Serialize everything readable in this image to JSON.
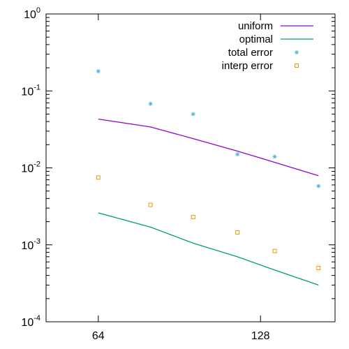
{
  "chart_data": {
    "type": "line",
    "xscale": "log2",
    "yscale": "log10",
    "xlim": [
      51.2,
      176
    ],
    "ylim": [
      0.0001,
      1
    ],
    "x_ticks": [
      {
        "value": 64,
        "label": "64"
      },
      {
        "value": 128,
        "label": "128"
      }
    ],
    "y_ticks": [
      {
        "value": 1,
        "base": "10",
        "exp": "0"
      },
      {
        "value": 0.1,
        "base": "10",
        "exp": "-1"
      },
      {
        "value": 0.01,
        "base": "10",
        "exp": "-2"
      },
      {
        "value": 0.001,
        "base": "10",
        "exp": "-3"
      },
      {
        "value": 0.0001,
        "base": "10",
        "exp": "-4"
      }
    ],
    "grid": false,
    "legend_position": "top-right",
    "x": [
      64,
      80,
      96,
      116,
      136,
      164
    ],
    "series": [
      {
        "name": "uniform",
        "style": "line",
        "color": "#9400d3",
        "values": [
          0.043,
          0.034,
          0.024,
          0.0165,
          0.0118,
          0.0079
        ]
      },
      {
        "name": "optimal",
        "style": "line",
        "color": "#009e73",
        "values": [
          0.0026,
          0.0017,
          0.00105,
          0.0007,
          0.00047,
          0.0003
        ]
      },
      {
        "name": "total error",
        "style": "points",
        "marker": "star",
        "color": "#56b4e9",
        "values": [
          0.18,
          0.068,
          0.05,
          0.015,
          0.014,
          0.0058
        ]
      },
      {
        "name": "interp error",
        "style": "points",
        "marker": "square",
        "color": "#e69f00",
        "values": [
          0.0075,
          0.0033,
          0.0023,
          0.00145,
          0.00083,
          0.0005
        ]
      }
    ]
  }
}
